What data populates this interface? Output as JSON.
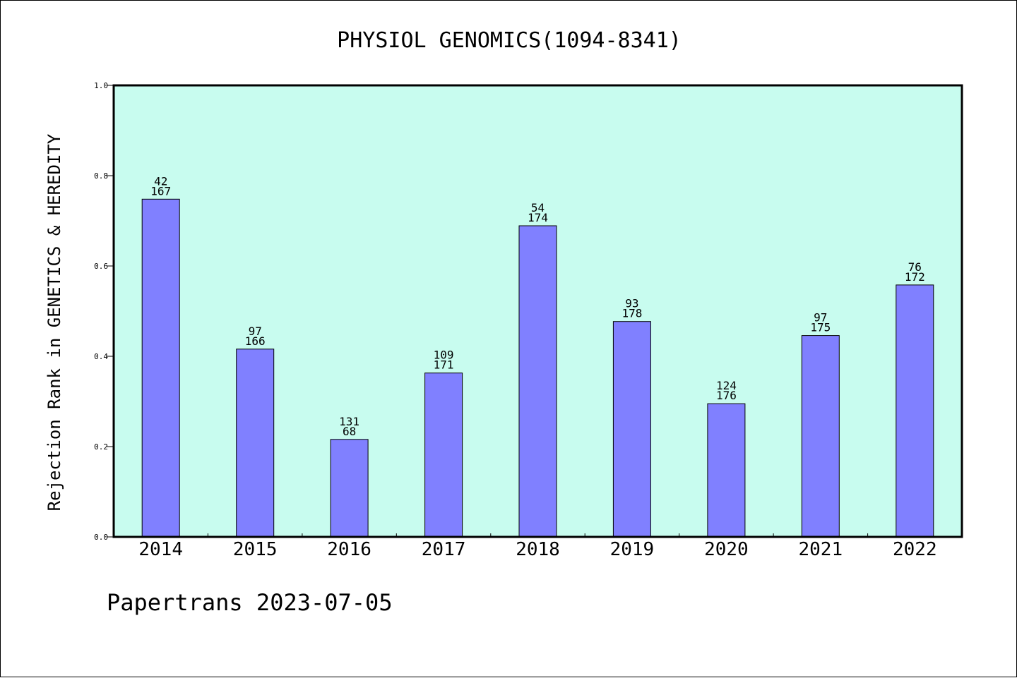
{
  "chart_data": {
    "type": "bar",
    "title": "PHYSIOL GENOMICS(1094-8341)",
    "xlabel": "",
    "ylabel": "Rejection Rank in GENETICS & HEREDITY",
    "ylim": [
      0,
      1.0
    ],
    "yticks": [
      "0.0",
      "0.2",
      "0.4",
      "0.6",
      "0.8",
      "1.0"
    ],
    "grid": false,
    "categories": [
      "2014",
      "2015",
      "2016",
      "2017",
      "2018",
      "2019",
      "2020",
      "2021",
      "2022"
    ],
    "values": [
      0.748,
      0.416,
      0.216,
      0.363,
      0.689,
      0.477,
      0.295,
      0.446,
      0.558
    ],
    "labels_top": [
      "42",
      "97",
      "131",
      "109",
      "54",
      "93",
      "124",
      "97",
      "76"
    ],
    "labels_bottom": [
      "167",
      "166",
      "68",
      "171",
      "174",
      "178",
      "176",
      "175",
      "172"
    ],
    "colors": {
      "plot_background": "#c8fcef",
      "bar_fill": "#8080ff",
      "bar_edge": "#000000"
    }
  },
  "footer": "Papertrans 2023-07-05"
}
